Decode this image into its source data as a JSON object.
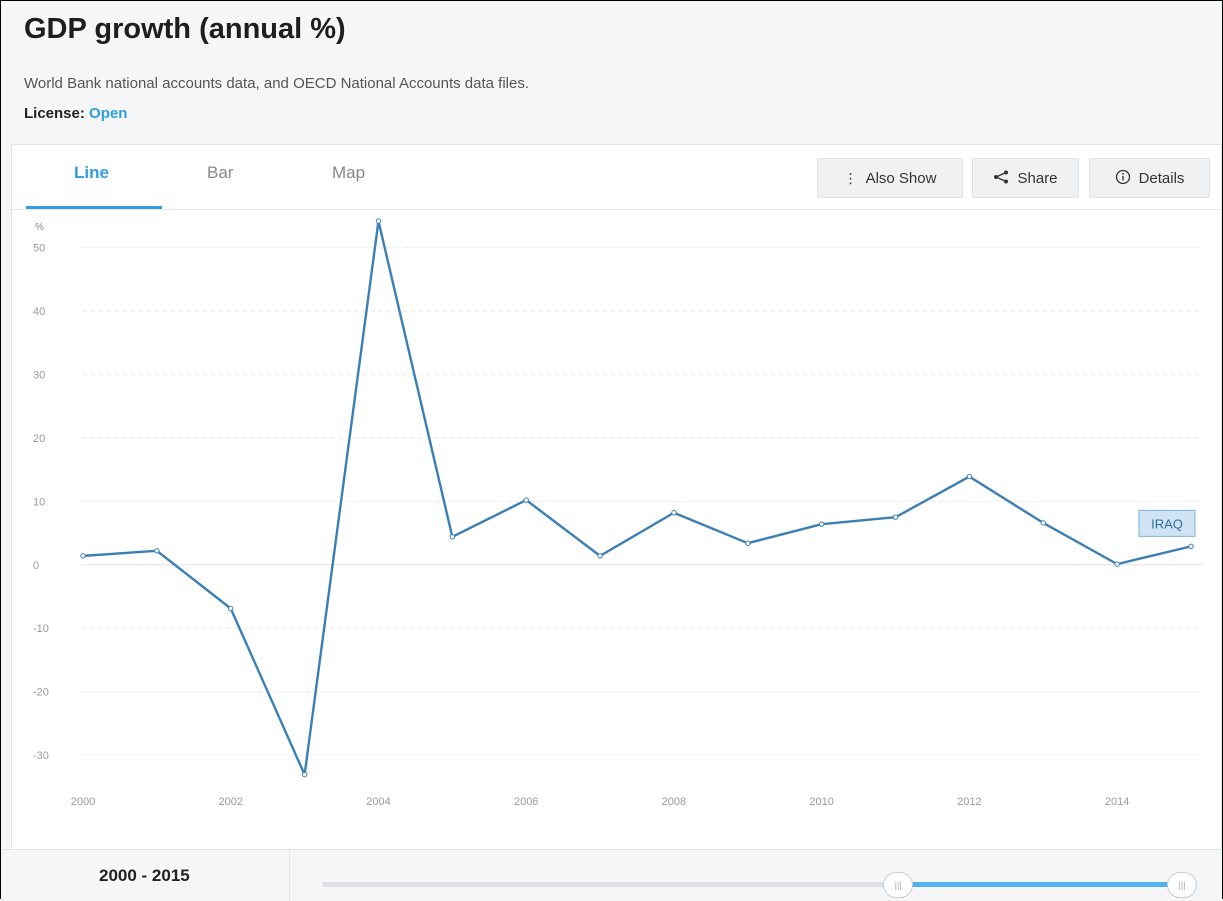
{
  "header": {
    "title": "GDP growth (annual %)",
    "source": "World Bank national accounts data, and OECD National Accounts data files.",
    "license_label": "License:",
    "license_value": "Open"
  },
  "tabs": [
    {
      "label": "Line",
      "active": true
    },
    {
      "label": "Bar",
      "active": false
    },
    {
      "label": "Map",
      "active": false
    }
  ],
  "toolbar": {
    "also_show": "Also Show",
    "share": "Share",
    "details": "Details"
  },
  "footer": {
    "range_label": "2000 - 2015",
    "slider_start": 0.67,
    "slider_end": 1.0
  },
  "chart_data": {
    "type": "line",
    "ylabel": "%",
    "ylim": [
      -33,
      55
    ],
    "yticks": [
      50,
      40,
      30,
      20,
      10,
      0,
      -10,
      -20,
      -30
    ],
    "xlim": [
      2000,
      2015
    ],
    "xticks": [
      2000,
      2002,
      2004,
      2006,
      2008,
      2010,
      2012,
      2014
    ],
    "grid": true,
    "color": "#3a7fb5",
    "series": [
      {
        "name": "IRAQ",
        "x": [
          2000,
          2001,
          2002,
          2003,
          2004,
          2005,
          2006,
          2007,
          2008,
          2009,
          2010,
          2011,
          2012,
          2013,
          2014,
          2015
        ],
        "values": [
          1.4,
          2.2,
          -6.9,
          -33.1,
          54.2,
          4.4,
          10.2,
          1.4,
          8.2,
          3.4,
          6.4,
          7.5,
          13.9,
          6.6,
          0.1,
          2.9
        ]
      }
    ]
  }
}
